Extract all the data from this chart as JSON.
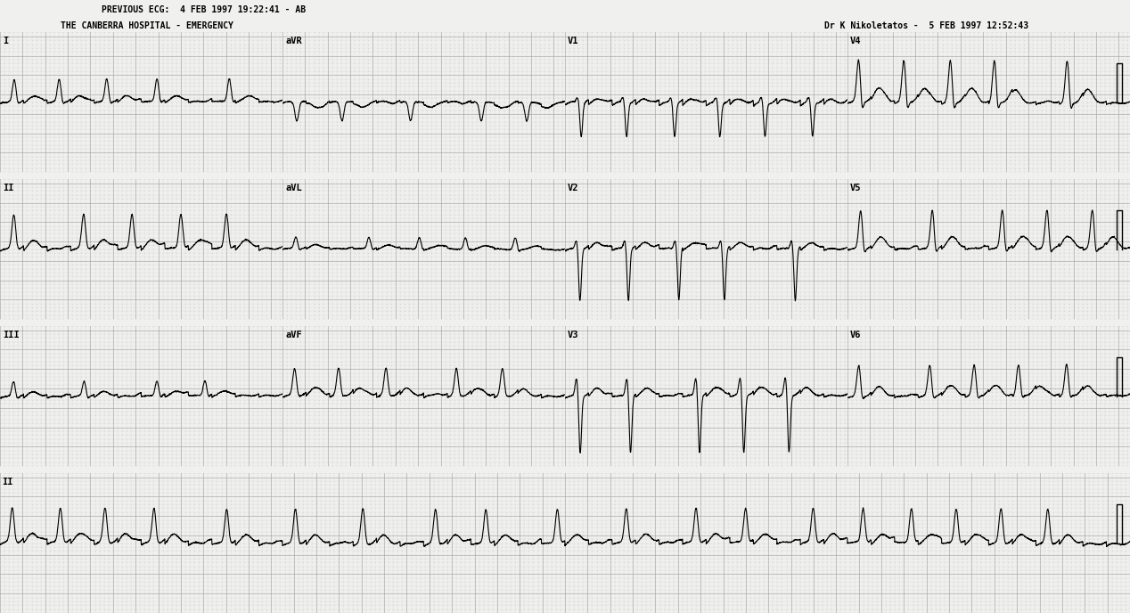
{
  "title_left_line1": "PREVIOUS ECG:  4 FEB 1997 19:22:41 - AB",
  "title_left_line2": "THE CANBERRA HOSPITAL - EMERGENCY",
  "title_right_line1": "Dr K Nikoletatos -  5 FEB 1997 12:52:43",
  "lead_labels_row1": [
    "I",
    "aVR",
    "V1",
    "V4"
  ],
  "lead_labels_row2": [
    "II",
    "aVL",
    "V2",
    "V5"
  ],
  "lead_labels_row3": [
    "III",
    "aVF",
    "V3",
    "V6"
  ],
  "rhythm_label": "II",
  "grid_dot_color": "#aaaaaa",
  "grid_major_color": "#999999",
  "ecg_color": "#000000",
  "bg_color": "#f0f0ee",
  "header_bg": "#f0f0ee",
  "fig_width": 12.68,
  "fig_height": 6.88,
  "dpi": 100,
  "fs": 500,
  "lead_duration": 2.5,
  "rhythm_duration": 10.0
}
